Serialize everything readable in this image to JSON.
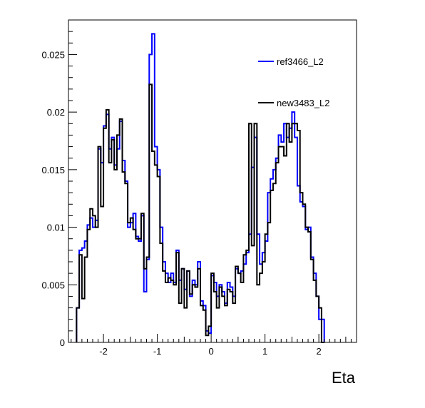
{
  "chart_data": {
    "type": "line",
    "xlabel": "Eta",
    "ylabel": "",
    "title": "",
    "xlim": [
      -2.65,
      2.7
    ],
    "ylim": [
      0,
      0.028
    ],
    "grid": false,
    "legend_position": "top-right",
    "x_ticks": [
      {
        "value": -2,
        "label": "-2"
      },
      {
        "value": -1,
        "label": "-1"
      },
      {
        "value": 0,
        "label": "0"
      },
      {
        "value": 1,
        "label": "1"
      },
      {
        "value": 2,
        "label": "2"
      }
    ],
    "y_ticks": [
      {
        "value": 0,
        "label": "0"
      },
      {
        "value": 0.005,
        "label": "0.005"
      },
      {
        "value": 0.01,
        "label": "0.01"
      },
      {
        "value": 0.015,
        "label": "0.015"
      },
      {
        "value": 0.02,
        "label": "0.02"
      },
      {
        "value": 0.025,
        "label": "0.025"
      }
    ],
    "bin_edges_start": -2.5,
    "bin_width": 0.05,
    "series": [
      {
        "name": "ref3466_L2",
        "color": "#0000ff",
        "values": [
          0.003,
          0.008,
          0.0082,
          0.0088,
          0.0102,
          0.0108,
          0.01,
          0.0106,
          0.0168,
          0.0156,
          0.0188,
          0.0198,
          0.0168,
          0.0178,
          0.0154,
          0.0168,
          0.0192,
          0.0158,
          0.014,
          0.01,
          0.0104,
          0.0112,
          0.0092,
          0.0088,
          0.011,
          0.0044,
          0.0072,
          0.025,
          0.0268,
          0.017,
          0.015,
          0.01,
          0.007,
          0.006,
          0.0052,
          0.006,
          0.0052,
          0.008,
          0.0054,
          0.0064,
          0.0046,
          0.0062,
          0.004,
          0.0054,
          0.005,
          0.007,
          0.0036,
          0.0032,
          0.001,
          0.0008,
          0.0058,
          0.0052,
          0.004,
          0.005,
          0.0044,
          0.0034,
          0.0052,
          0.0048,
          0.004,
          0.0064,
          0.006,
          0.0062,
          0.0068,
          0.0078,
          0.0094,
          0.0152,
          0.0178,
          0.0094,
          0.0068,
          0.0078,
          0.0088,
          0.013,
          0.0142,
          0.015,
          0.016,
          0.018,
          0.0174,
          0.019,
          0.0178,
          0.0186,
          0.02,
          0.0178,
          0.0136,
          0.0122,
          0.0118,
          0.0098,
          0.01,
          0.0074,
          0.006,
          0.004,
          0.002,
          0.002
        ]
      },
      {
        "name": "new3483_L2",
        "color": "#000000",
        "values": [
          0.003,
          0.0076,
          0.0038,
          0.0074,
          0.0098,
          0.0116,
          0.011,
          0.01,
          0.017,
          0.0118,
          0.0186,
          0.0202,
          0.0156,
          0.0176,
          0.015,
          0.018,
          0.0194,
          0.0148,
          0.0138,
          0.0104,
          0.0108,
          0.0098,
          0.009,
          0.009,
          0.0112,
          0.0064,
          0.0074,
          0.0224,
          0.0166,
          0.0154,
          0.0144,
          0.0086,
          0.0062,
          0.0052,
          0.0056,
          0.0054,
          0.005,
          0.0078,
          0.0034,
          0.0064,
          0.003,
          0.0062,
          0.0042,
          0.005,
          0.0048,
          0.0064,
          0.0032,
          0.0028,
          0.0006,
          0.0014,
          0.006,
          0.0044,
          0.003,
          0.0048,
          0.004,
          0.0032,
          0.0046,
          0.0044,
          0.0034,
          0.0066,
          0.006,
          0.0052,
          0.0076,
          0.008,
          0.019,
          0.0084,
          0.019,
          0.005,
          0.006,
          0.007,
          0.0094,
          0.0104,
          0.0132,
          0.0138,
          0.0156,
          0.017,
          0.017,
          0.0162,
          0.019,
          0.0174,
          0.019,
          0.019,
          0.0184,
          0.013,
          0.012,
          0.01,
          0.0096,
          0.0072,
          0.0054,
          0.004,
          0.003,
          0.0
        ]
      }
    ]
  }
}
